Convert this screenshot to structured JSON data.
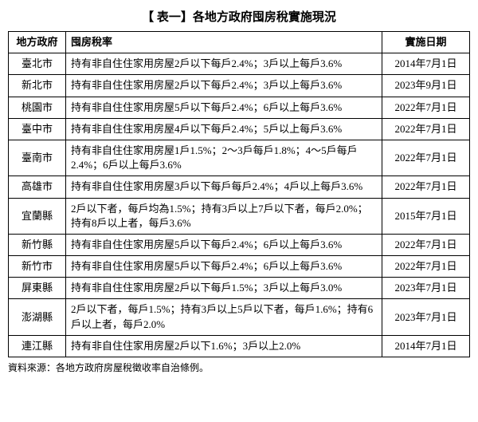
{
  "title": "【 表一】各地方政府囤房稅實施現況",
  "headers": {
    "gov": "地方政府",
    "rate": "囤房稅率",
    "date": "實施日期"
  },
  "rows": [
    {
      "gov": "臺北市",
      "rate": "持有非自住住家用房屋2戶以下每戶2.4%；3戶以上每戶3.6%",
      "date": "2014年7月1日"
    },
    {
      "gov": "新北市",
      "rate": "持有非自住住家用房屋2戶以下每戶2.4%；3戶以上每戶3.6%",
      "date": "2023年9月1日"
    },
    {
      "gov": "桃園市",
      "rate": "持有非自住住家用房屋5戶以下每戶2.4%；6戶以上每戶3.6%",
      "date": "2022年7月1日"
    },
    {
      "gov": "臺中市",
      "rate": "持有非自住住家用房屋4戶以下每戶2.4%；5戶以上每戶3.6%",
      "date": "2022年7月1日"
    },
    {
      "gov": "臺南市",
      "rate": "持有非自住住家用房屋1戶1.5%；2～3戶每戶1.8%；4～5戶每戶2.4%；6戶以上每戶3.6%",
      "date": "2022年7月1日"
    },
    {
      "gov": "高雄市",
      "rate": "持有非自住住家用房屋3戶以下每戶每戶2.4%；4戶以上每戶3.6%",
      "date": "2022年7月1日"
    },
    {
      "gov": "宜蘭縣",
      "rate": "2戶以下者，每戶均為1.5%；持有3戶以上7戶以下者，每戶2.0%；持有8戶以上者，每戶3.6%",
      "date": "2015年7月1日"
    },
    {
      "gov": "新竹縣",
      "rate": "持有非自住住家用房屋5戶以下每戶2.4%；6戶以上每戶3.6%",
      "date": "2022年7月1日"
    },
    {
      "gov": "新竹市",
      "rate": "持有非自住住家用房屋5戶以下每戶2.4%；6戶以上每戶3.6%",
      "date": "2022年7月1日"
    },
    {
      "gov": "屏東縣",
      "rate": "持有非自住住家用房屋2戶以下每戶1.5%；3戶以上每戶3.0%",
      "date": "2023年7月1日"
    },
    {
      "gov": "澎湖縣",
      "rate": "2戶以下者，每戶1.5%；持有3戶以上5戶以下者，每戶1.6%；持有6戶以上者，每戶2.0%",
      "date": "2023年7月1日"
    },
    {
      "gov": "連江縣",
      "rate": "持有非自住住家用房屋2戶以下1.6%；3戶以上2.0%",
      "date": "2014年7月1日"
    }
  ],
  "source": "資料來源：各地方政府房屋稅徵收率自治條例。"
}
